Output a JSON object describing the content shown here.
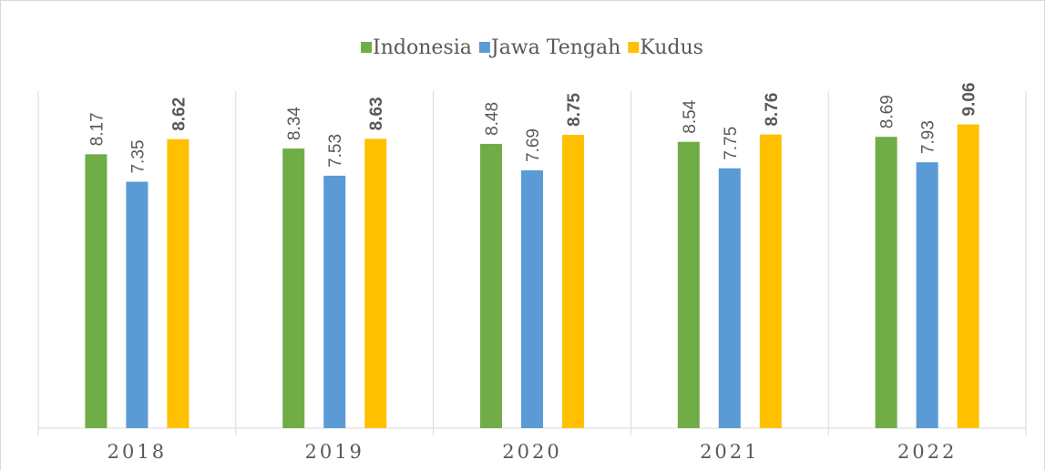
{
  "chart_data": {
    "type": "bar",
    "categories": [
      "2018",
      "2019",
      "2020",
      "2021",
      "2022"
    ],
    "series": [
      {
        "name": "Indonesia",
        "color": "#70ad47",
        "values": [
          8.17,
          8.34,
          8.48,
          8.54,
          8.69
        ]
      },
      {
        "name": "Jawa Tengah",
        "color": "#5b9bd5",
        "values": [
          7.35,
          7.53,
          7.69,
          7.75,
          7.93
        ]
      },
      {
        "name": "Kudus",
        "color": "#ffc000",
        "values": [
          8.62,
          8.63,
          8.75,
          8.76,
          9.06
        ],
        "bold_labels": true
      }
    ],
    "ylim": [
      0,
      10
    ],
    "legend": "top"
  }
}
